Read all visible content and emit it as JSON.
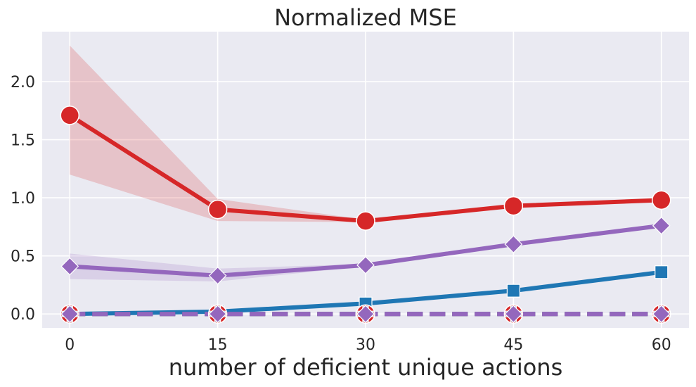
{
  "chart_data": {
    "type": "line",
    "title": "Normalized MSE",
    "xlabel": "number of deficient unique actions",
    "ylabel": "",
    "x": [
      0,
      15,
      30,
      45,
      60
    ],
    "xlim": [
      -2.8,
      62.8
    ],
    "ylim": [
      -0.12,
      2.43
    ],
    "yticks": [
      0.0,
      0.5,
      1.0,
      1.5,
      2.0
    ],
    "ytick_labels": [
      "0.0",
      "0.5",
      "1.0",
      "1.5",
      "2.0"
    ],
    "xticks": [
      0,
      15,
      30,
      45,
      60
    ],
    "xtick_labels": [
      "0",
      "15",
      "30",
      "45",
      "60"
    ],
    "grid": true,
    "background": "#eaeaf2",
    "series": [
      {
        "color": "#d62728",
        "marker": "circle",
        "dashed": false,
        "values": [
          1.71,
          0.9,
          0.8,
          0.93,
          0.98
        ],
        "band_lower": [
          1.2,
          0.8,
          0.79,
          0.92,
          0.97
        ],
        "band_upper": [
          2.31,
          0.99,
          0.81,
          0.94,
          0.99
        ]
      },
      {
        "color": "#9467bd",
        "marker": "diamond",
        "dashed": false,
        "values": [
          0.41,
          0.33,
          0.42,
          0.6,
          0.76
        ],
        "band_lower": [
          0.3,
          0.28,
          0.41,
          0.59,
          0.75
        ],
        "band_upper": [
          0.52,
          0.39,
          0.43,
          0.61,
          0.77
        ]
      },
      {
        "color": "#1f77b4",
        "marker": "square",
        "dashed": false,
        "values": [
          0.0,
          0.02,
          0.09,
          0.2,
          0.36
        ]
      },
      {
        "color": "#d62728",
        "marker": "circle",
        "dashed": true,
        "values": [
          0.0,
          0.0,
          0.0,
          0.0,
          0.0
        ]
      },
      {
        "color": "#1f77b4",
        "marker": "plus",
        "dashed": true,
        "values": [
          0.0,
          0.0,
          0.0,
          0.0,
          0.0
        ]
      },
      {
        "color": "#9467bd",
        "marker": "diamond",
        "dashed": true,
        "values": [
          0.0,
          0.0,
          0.0,
          0.0,
          0.0
        ]
      }
    ]
  }
}
